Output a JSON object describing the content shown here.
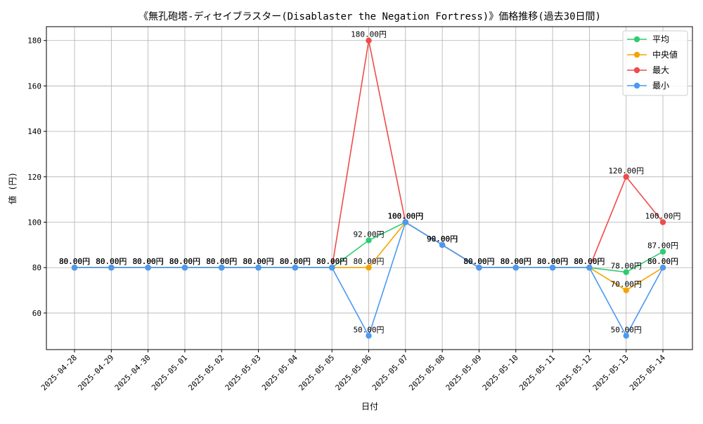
{
  "chart_data": {
    "type": "line",
    "title": "《無孔砲塔-ディセイブラスター(Disablaster the Negation Fortress)》価格推移(過去30日間)",
    "xlabel": "日付",
    "ylabel": "値 (円)",
    "categories": [
      "2025-04-28",
      "2025-04-29",
      "2025-04-30",
      "2025-05-01",
      "2025-05-02",
      "2025-05-03",
      "2025-05-04",
      "2025-05-05",
      "2025-05-06",
      "2025-05-07",
      "2025-05-08",
      "2025-05-09",
      "2025-05-10",
      "2025-05-11",
      "2025-05-12",
      "2025-05-13",
      "2025-05-14"
    ],
    "ylim": [
      43.9,
      186.1
    ],
    "yticks": [
      60,
      80,
      100,
      120,
      140,
      160,
      180
    ],
    "grid": true,
    "legend_position": "top-right",
    "value_suffix": "円",
    "series": [
      {
        "name": "平均",
        "color": "#2ecc71",
        "values": [
          80,
          80,
          80,
          80,
          80,
          80,
          80,
          80,
          92,
          100,
          90,
          80,
          80,
          80,
          80,
          78,
          87
        ]
      },
      {
        "name": "中央値",
        "color": "#f5a300",
        "values": [
          80,
          80,
          80,
          80,
          80,
          80,
          80,
          80,
          80,
          100,
          90,
          80,
          80,
          80,
          80,
          70,
          80
        ]
      },
      {
        "name": "最大",
        "color": "#ef4b4b",
        "values": [
          80,
          80,
          80,
          80,
          80,
          80,
          80,
          80,
          180,
          100,
          90,
          80,
          80,
          80,
          80,
          120,
          100
        ]
      },
      {
        "name": "最小",
        "color": "#4a9af2",
        "values": [
          80,
          80,
          80,
          80,
          80,
          80,
          80,
          80,
          50,
          100,
          90,
          80,
          80,
          80,
          80,
          50,
          80
        ]
      }
    ]
  }
}
